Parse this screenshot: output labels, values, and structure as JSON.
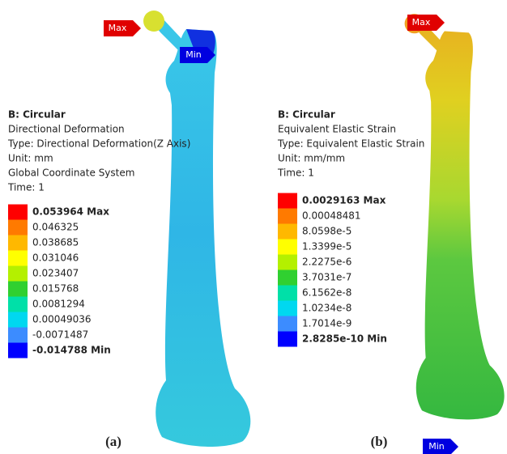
{
  "panels": [
    {
      "caption": "(a)",
      "title": "B: Circular",
      "lines": [
        "Directional Deformation",
        "Type: Directional Deformation(Z Axis)",
        "Unit: mm",
        "Global Coordinate System",
        "Time: 1"
      ],
      "legend": [
        "0.053964 Max",
        "0.046325",
        "0.038685",
        "0.031046",
        "0.023407",
        "0.015768",
        "0.0081294",
        "0.00049036",
        "-0.0071487",
        "-0.014788 Min"
      ],
      "max_tag": "Max",
      "min_tag": "Min"
    },
    {
      "caption": "(b)",
      "title": "B: Circular",
      "lines": [
        "Equivalent Elastic Strain",
        "Type: Equivalent Elastic Strain",
        "Unit: mm/mm",
        "Time: 1"
      ],
      "legend": [
        "0.0029163 Max",
        "0.00048481",
        "8.0598e-5",
        "1.3399e-5",
        "2.2275e-6",
        "3.7031e-7",
        "6.1562e-8",
        "1.0234e-8",
        "1.7014e-9",
        "2.8285e-10 Min"
      ],
      "max_tag": "Max",
      "min_tag": "Min"
    }
  ]
}
